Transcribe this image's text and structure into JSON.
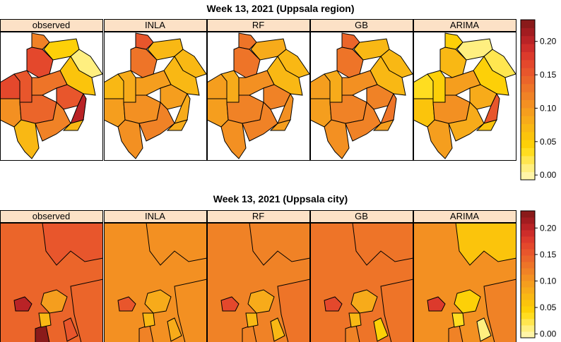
{
  "colors": {
    "ramp": [
      "#FFF5A8",
      "#FFEF80",
      "#FFE650",
      "#FFDD20",
      "#FDD008",
      "#FBC40C",
      "#F9B814",
      "#F7AB1A",
      "#F59E1E",
      "#F39022",
      "#F08226",
      "#EE7428",
      "#EB652A",
      "#E8562C",
      "#E4482C",
      "#DC3A2C",
      "#CD2D2A",
      "#B92326",
      "#A21C20",
      "#8A1A1A"
    ],
    "strip": "#FCE1C6",
    "range": [
      0,
      0.23
    ]
  },
  "chart_data": [
    {
      "type": "choropleth",
      "title": "Week 13, 2021 (Uppsala region)",
      "panels": [
        "observed",
        "INLA",
        "RF",
        "GB",
        "ARIMA"
      ],
      "legend_ticks": [
        "0.00",
        "0.05",
        "0.10",
        "0.15",
        "0.20"
      ],
      "legend_values": [
        0,
        0.05,
        0.1,
        0.15,
        0.2
      ],
      "values": {
        "observed": [
          0.12,
          0.05,
          0.02,
          0.06,
          0.17,
          0.17,
          0.16,
          0.13,
          0.15,
          0.2,
          0.11,
          0.14,
          0.07,
          0.12,
          0.08
        ],
        "INLA": [
          0.15,
          0.07,
          0.07,
          0.08,
          0.13,
          0.07,
          0.09,
          0.1,
          0.1,
          0.09,
          0.1,
          0.11,
          0.11,
          0.12,
          0.09
        ],
        "RF": [
          0.13,
          0.09,
          0.07,
          0.08,
          0.13,
          0.1,
          0.09,
          0.11,
          0.12,
          0.11,
          0.1,
          0.12,
          0.11,
          0.12,
          0.1
        ],
        "GB": [
          0.14,
          0.08,
          0.07,
          0.08,
          0.13,
          0.1,
          0.09,
          0.11,
          0.12,
          0.13,
          0.1,
          0.12,
          0.11,
          0.12,
          0.1
        ],
        "ARIMA": [
          0.05,
          0.02,
          0.03,
          0.05,
          0.08,
          0.04,
          0.05,
          0.1,
          0.09,
          0.15,
          0.06,
          0.11,
          0.1,
          0.09,
          0.06
        ]
      }
    },
    {
      "type": "choropleth",
      "title": "Week 13, 2021 (Uppsala city)",
      "panels": [
        "observed",
        "INLA",
        "RF",
        "GB",
        "ARIMA"
      ],
      "legend_ticks": [
        "0.00",
        "0.05",
        "0.10",
        "0.15",
        "0.20"
      ],
      "legend_values": [
        0,
        0.05,
        0.1,
        0.15,
        0.2
      ],
      "values": {
        "observed": [
          0.14,
          0.15,
          0.14,
          0.1,
          0.2,
          0.22,
          0.16,
          0.08
        ],
        "INLA": [
          0.11,
          0.11,
          0.11,
          0.09,
          0.16,
          0.12,
          0.09,
          0.08
        ],
        "RF": [
          0.12,
          0.12,
          0.13,
          0.09,
          0.17,
          0.12,
          0.07,
          0.08
        ],
        "GB": [
          0.13,
          0.13,
          0.13,
          0.09,
          0.17,
          0.12,
          0.05,
          0.08
        ],
        "ARIMA": [
          0.11,
          0.06,
          0.12,
          0.05,
          0.18,
          0.12,
          0.02,
          0.04
        ]
      }
    }
  ]
}
